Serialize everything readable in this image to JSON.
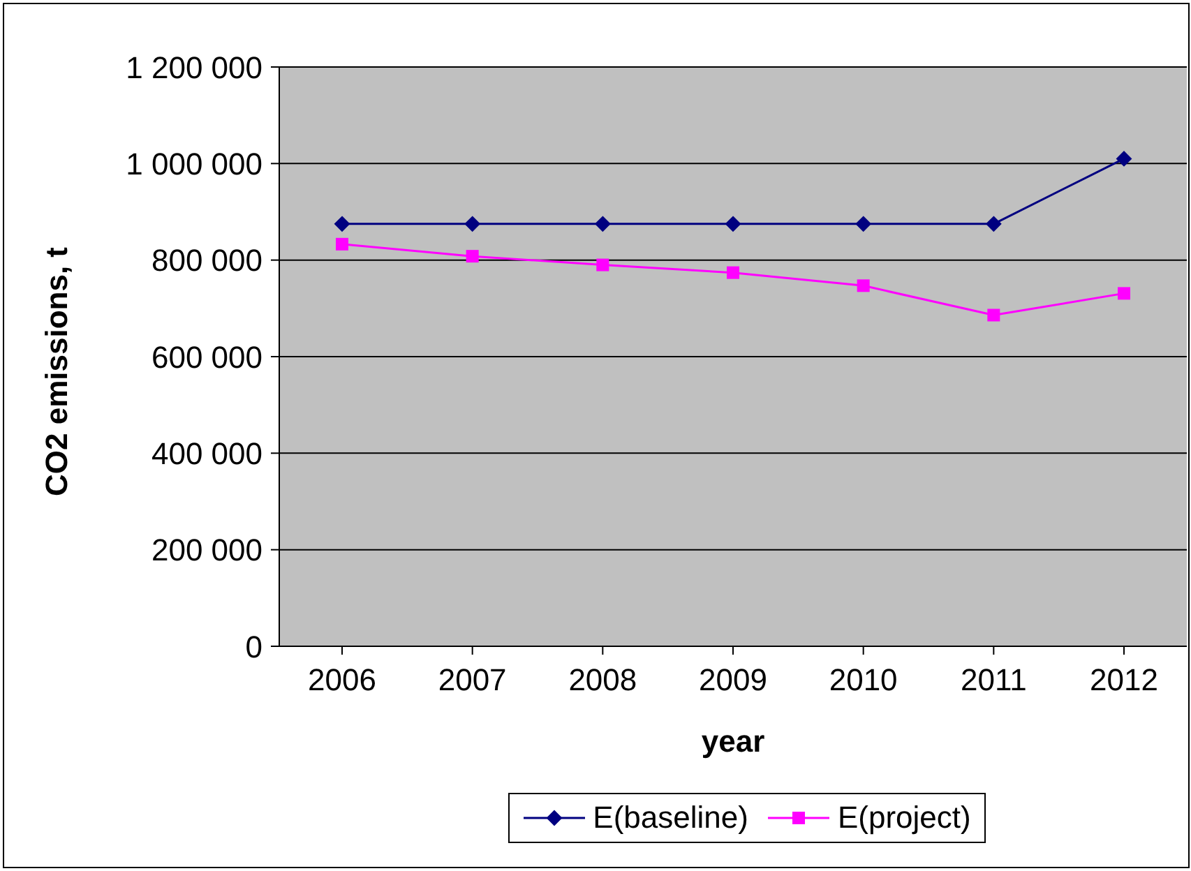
{
  "chart_data": {
    "type": "line",
    "xlabel": "year",
    "ylabel": "CO2 emissions, t",
    "categories": [
      "2006",
      "2007",
      "2008",
      "2009",
      "2010",
      "2011",
      "2012"
    ],
    "series": [
      {
        "name": "E(baseline)",
        "color": "#000080",
        "marker": "diamond",
        "values": [
          875000,
          875000,
          875000,
          875000,
          875000,
          875000,
          1010000
        ]
      },
      {
        "name": "E(project)",
        "color": "#ff00ff",
        "marker": "square",
        "values": [
          833000,
          808000,
          790000,
          774000,
          747000,
          686000,
          731000
        ]
      }
    ],
    "ylim": [
      0,
      1200000
    ],
    "yticks": [
      0,
      {
        "value": 200000,
        "label": "200 000"
      },
      {
        "value": 400000,
        "label": "400 000"
      },
      {
        "value": 600000,
        "label": "600 000"
      },
      {
        "value": 800000,
        "label": "800 000"
      },
      {
        "value": 1000000,
        "label": "1 000 000"
      },
      {
        "value": 1200000,
        "label": "1 200 000"
      }
    ],
    "grid": "y",
    "legend": "bottom"
  }
}
